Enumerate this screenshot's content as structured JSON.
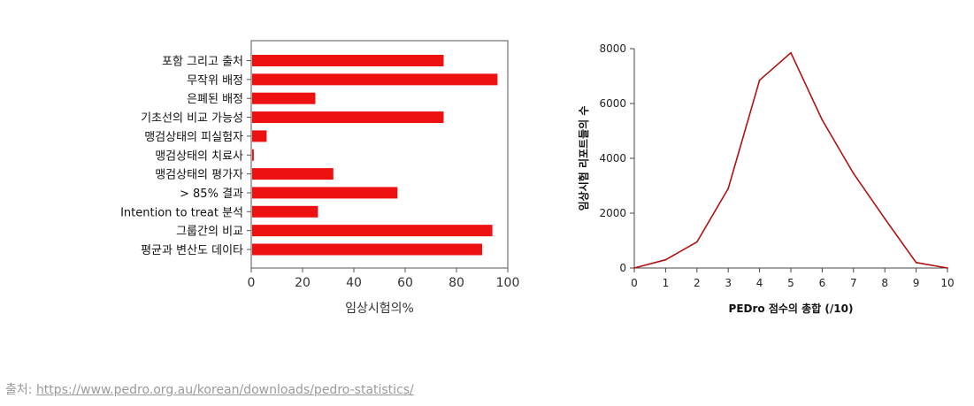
{
  "chart_data": [
    {
      "type": "bar",
      "orientation": "horizontal",
      "categories": [
        "포함 그리고 출처",
        "무작위 배정",
        "은폐된 배정",
        "기초선의 비교 가능성",
        "맹검상태의 피실험자",
        "맹검상태의 치료사",
        "맹검상태의 평가자",
        "> 85% 결과",
        "Intention to treat 분석",
        "그룹간의 비교",
        "평균과 변산도 데이타"
      ],
      "values": [
        75,
        96,
        25,
        75,
        6,
        1,
        32,
        57,
        26,
        94,
        90
      ],
      "xlabel": "임상시험의%",
      "xlim": [
        0,
        100
      ],
      "xticks": [
        "0",
        "20",
        "40",
        "60",
        "80",
        "100"
      ],
      "grid": false,
      "bar_color": "#ee1111"
    },
    {
      "type": "line",
      "x": [
        0,
        1,
        2,
        3,
        4,
        5,
        6,
        7,
        8,
        9,
        10
      ],
      "y": [
        0,
        300,
        950,
        2900,
        6850,
        7850,
        5400,
        3450,
        1800,
        200,
        0
      ],
      "xlabel": "PEDro 점수의 총합 (/10)",
      "ylabel": "임상시험 리포트들의 수",
      "xlim": [
        0,
        10
      ],
      "ylim": [
        0,
        8000
      ],
      "xticks": [
        "0",
        "1",
        "2",
        "3",
        "4",
        "5",
        "6",
        "7",
        "8",
        "9",
        "10"
      ],
      "yticks": [
        "0",
        "2000",
        "4000",
        "6000",
        "8000"
      ],
      "grid": false,
      "line_color": "#b01010"
    }
  ],
  "source": {
    "prefix": "출처: ",
    "link_text": "https://www.pedro.org.au/korean/downloads/pedro-statistics/"
  }
}
